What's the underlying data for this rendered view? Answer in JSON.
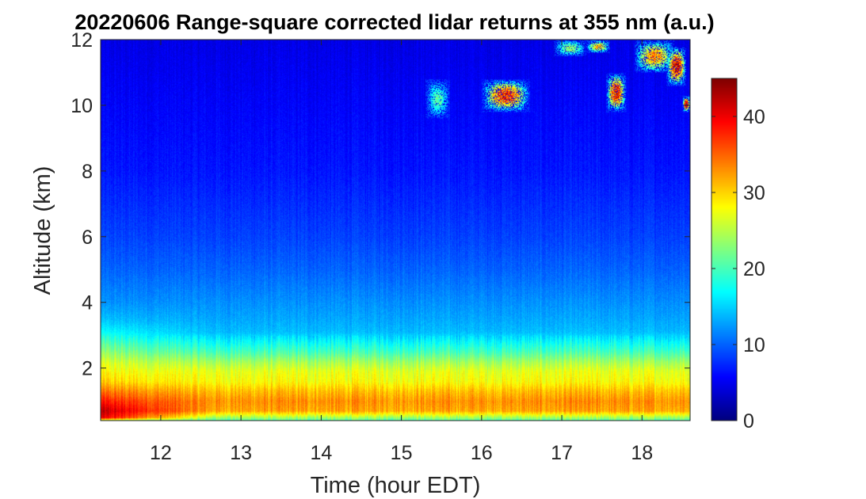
{
  "chart_data": {
    "type": "heatmap",
    "title": "20220606  Range-square corrected lidar returns at 355 nm (a.u.)",
    "xlabel": "Time (hour EDT)",
    "ylabel": "Altitude (km)",
    "xlim": [
      11.25,
      18.6
    ],
    "ylim": [
      0.4,
      12
    ],
    "xticks": [
      12,
      13,
      14,
      15,
      16,
      17,
      18
    ],
    "yticks": [
      2,
      4,
      6,
      8,
      10,
      12
    ],
    "colorbar": {
      "range": [
        0,
        45
      ],
      "ticks": [
        0,
        10,
        20,
        30,
        40
      ],
      "colormap": "jet"
    },
    "profile_by_altitude": {
      "altitude_km": [
        0.4,
        0.5,
        0.7,
        1.0,
        1.3,
        1.6,
        1.9,
        2.2,
        2.5,
        2.8,
        3.1,
        3.5,
        4.0,
        5.0,
        6.0,
        7.0,
        8.0,
        9.0,
        10.0,
        11.0,
        12.0
      ],
      "value_early": [
        22,
        40,
        42,
        38,
        34,
        30,
        28,
        26,
        23,
        20,
        17,
        14,
        12,
        10,
        8.5,
        7.5,
        6.5,
        6.0,
        5.5,
        5.0,
        4.5
      ],
      "value_late": [
        20,
        24,
        32,
        33,
        31,
        28,
        27,
        24,
        20,
        17,
        14,
        13,
        12,
        10,
        8.5,
        7.5,
        6.5,
        6.0,
        5.5,
        5.0,
        4.5
      ]
    },
    "cloud_features": [
      {
        "time_start": 15.3,
        "time_end": 15.6,
        "alt_bottom": 9.6,
        "alt_top": 10.8,
        "peak": 16
      },
      {
        "time_start": 16.0,
        "time_end": 16.6,
        "alt_bottom": 9.8,
        "alt_top": 10.8,
        "peak": 38
      },
      {
        "time_start": 16.9,
        "time_end": 17.3,
        "alt_bottom": 11.5,
        "alt_top": 12.0,
        "peak": 20
      },
      {
        "time_start": 17.3,
        "time_end": 17.6,
        "alt_bottom": 11.6,
        "alt_top": 12.0,
        "peak": 28
      },
      {
        "time_start": 17.55,
        "time_end": 17.8,
        "alt_bottom": 9.8,
        "alt_top": 11.0,
        "peak": 40
      },
      {
        "time_start": 17.9,
        "time_end": 18.4,
        "alt_bottom": 11.0,
        "alt_top": 12.0,
        "peak": 32
      },
      {
        "time_start": 18.3,
        "time_end": 18.55,
        "alt_bottom": 10.6,
        "alt_top": 11.8,
        "peak": 42
      },
      {
        "time_start": 18.5,
        "time_end": 18.6,
        "alt_bottom": 9.8,
        "alt_top": 10.3,
        "peak": 44
      }
    ]
  }
}
